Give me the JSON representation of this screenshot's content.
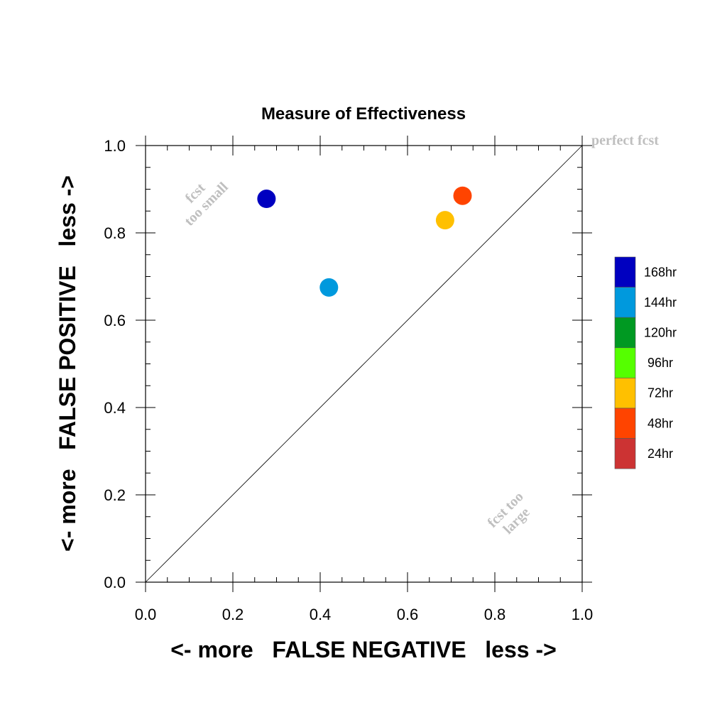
{
  "chart_data": {
    "type": "scatter",
    "title": "Measure of Effectiveness",
    "xlabel": "<- more   FALSE NEGATIVE   less ->",
    "ylabel": "<- more   FALSE POSITIVE   less ->",
    "xlim": [
      0,
      1
    ],
    "ylim": [
      0,
      1
    ],
    "xticks": [
      "0.0",
      "0.2",
      "0.4",
      "0.6",
      "0.8",
      "1.0"
    ],
    "yticks": [
      "0.0",
      "0.2",
      "0.4",
      "0.6",
      "0.8",
      "1.0"
    ],
    "grid": false,
    "legend_position": "right",
    "annotations": {
      "perfect": "perfect fcst",
      "small_line1": "fcst",
      "small_line2": "too small",
      "large_line1": "fcst too",
      "large_line2": "large"
    },
    "legend": [
      {
        "label": "168hr",
        "color": "#0000c0"
      },
      {
        "label": "144hr",
        "color": "#0099dd"
      },
      {
        "label": "120hr",
        "color": "#009922"
      },
      {
        "label": "96hr",
        "color": "#55ff00"
      },
      {
        "label": "72hr",
        "color": "#ffc000"
      },
      {
        "label": "48hr",
        "color": "#ff4400"
      },
      {
        "label": "24hr",
        "color": "#cc3333"
      }
    ],
    "points": [
      {
        "series": "168hr",
        "x": 0.277,
        "y": 0.878,
        "color": "#0000c0"
      },
      {
        "series": "144hr",
        "x": 0.42,
        "y": 0.675,
        "color": "#0099dd"
      },
      {
        "series": "72hr",
        "x": 0.686,
        "y": 0.829,
        "color": "#ffc000"
      },
      {
        "series": "48hr",
        "x": 0.726,
        "y": 0.885,
        "color": "#ff4400"
      }
    ]
  }
}
